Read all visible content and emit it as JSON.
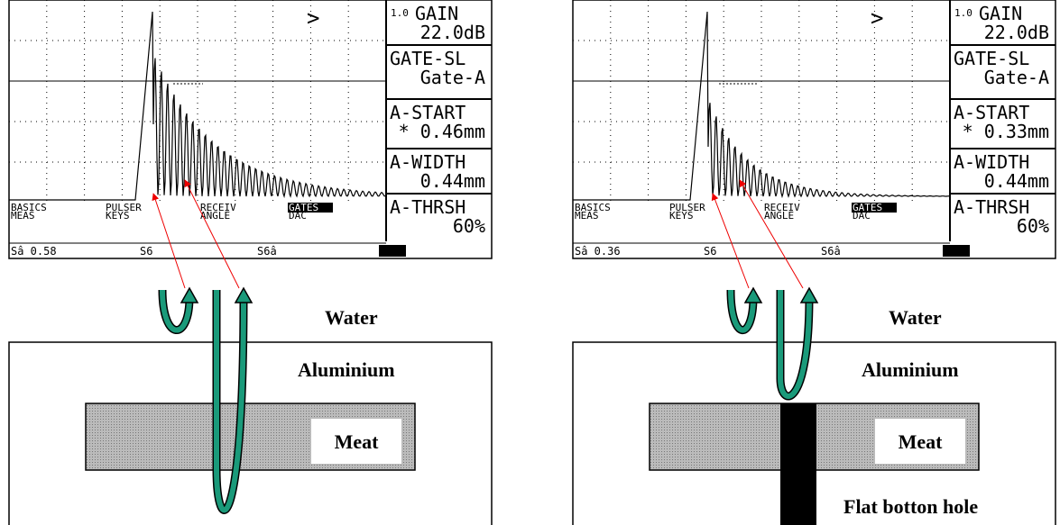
{
  "panels": [
    {
      "menu": [
        {
          "prefix": "1.0",
          "label": "GAIN",
          "value": "22.0dB"
        },
        {
          "label": "GATE-SL",
          "value": "Gate-A"
        },
        {
          "label": "A-START",
          "value": "* 0.46mm"
        },
        {
          "label": "A-WIDTH",
          "value": "0.44mm"
        },
        {
          "label": "A-THRSH",
          "value": "60%"
        }
      ],
      "cursor": ">",
      "softkeys": [
        [
          "BASICS",
          "MEAS"
        ],
        [
          "PULSER",
          "KEYS"
        ],
        [
          "RECEIV",
          "ANGLE"
        ],
        [
          "GATES",
          "DAC"
        ]
      ],
      "status": [
        "Sâ 0.58",
        "S6",
        "S6â"
      ],
      "labels": {
        "water": "Water",
        "aluminium": "Aluminium",
        "meat": "Meat"
      }
    },
    {
      "menu": [
        {
          "prefix": "1.0",
          "label": "GAIN",
          "value": "22.0dB"
        },
        {
          "label": "GATE-SL",
          "value": "Gate-A"
        },
        {
          "label": "A-START",
          "value": "* 0.33mm"
        },
        {
          "label": "A-WIDTH",
          "value": "0.44mm"
        },
        {
          "label": "A-THRSH",
          "value": "60%"
        }
      ],
      "cursor": ">",
      "softkeys": [
        [
          "BASICS",
          "MEAS"
        ],
        [
          "PULSER",
          "KEYS"
        ],
        [
          "RECEIV",
          "ANGLE"
        ],
        [
          "GATES",
          "DAC"
        ]
      ],
      "status": [
        "Sâ 0.36",
        "S6",
        "S6â"
      ],
      "labels": {
        "water": "Water",
        "aluminium": "Aluminium",
        "meat": "Meat",
        "hole": "Flat botton hole"
      }
    }
  ]
}
